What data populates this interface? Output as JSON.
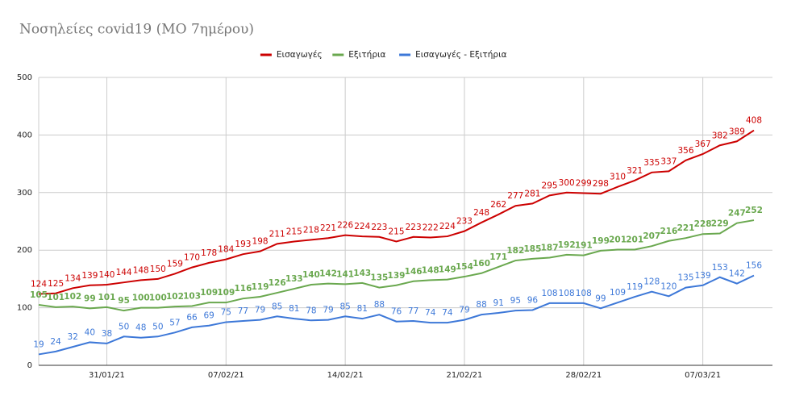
{
  "chart_data": {
    "type": "line",
    "title": "Νοσηλείες covid19 (ΜΟ 7ημέρου)",
    "categories": [
      null,
      null,
      null,
      null,
      "31/01/21",
      null,
      null,
      null,
      null,
      null,
      null,
      "07/02/21",
      null,
      null,
      null,
      null,
      null,
      null,
      "14/02/21",
      null,
      null,
      null,
      null,
      null,
      null,
      "21/02/21",
      null,
      null,
      null,
      null,
      null,
      null,
      "28/02/21",
      null,
      null,
      null,
      null,
      null,
      null,
      "07/03/21",
      null,
      null,
      null
    ],
    "series": [
      {
        "name": "Εισαγωγές",
        "color": "#cc0000",
        "values": [
          124,
          125,
          134,
          139,
          140,
          144,
          148,
          150,
          159,
          170,
          178,
          184,
          193,
          198,
          211,
          215,
          218,
          221,
          226,
          224,
          223,
          215,
          223,
          222,
          224,
          233,
          248,
          262,
          277,
          281,
          295,
          300,
          299,
          298,
          310,
          321,
          335,
          337,
          356,
          367,
          382,
          389,
          408
        ]
      },
      {
        "name": "Εξιτήρια",
        "color": "#6aa84f",
        "values": [
          105,
          101,
          102,
          99,
          101,
          95,
          100,
          100,
          102,
          103,
          109,
          109,
          116,
          119,
          126,
          133,
          140,
          142,
          141,
          143,
          135,
          139,
          146,
          148,
          149,
          154,
          160,
          171,
          182,
          185,
          187,
          192,
          191,
          199,
          201,
          201,
          207,
          216,
          221,
          228,
          229,
          247,
          252
        ]
      },
      {
        "name": "Εισαγωγές - Εξιτήρια",
        "color": "#3d78d8",
        "values": [
          19,
          24,
          32,
          40,
          38,
          50,
          48,
          50,
          57,
          66,
          69,
          75,
          77,
          79,
          85,
          81,
          78,
          79,
          85,
          81,
          88,
          76,
          77,
          74,
          74,
          79,
          88,
          91,
          95,
          96,
          108,
          108,
          108,
          99,
          109,
          119,
          128,
          120,
          135,
          139,
          153,
          142,
          156
        ]
      }
    ],
    "ylim": [
      0,
      500
    ],
    "yticks": [
      0,
      100,
      200,
      300,
      400,
      500
    ],
    "grid": true,
    "legend": "top"
  }
}
